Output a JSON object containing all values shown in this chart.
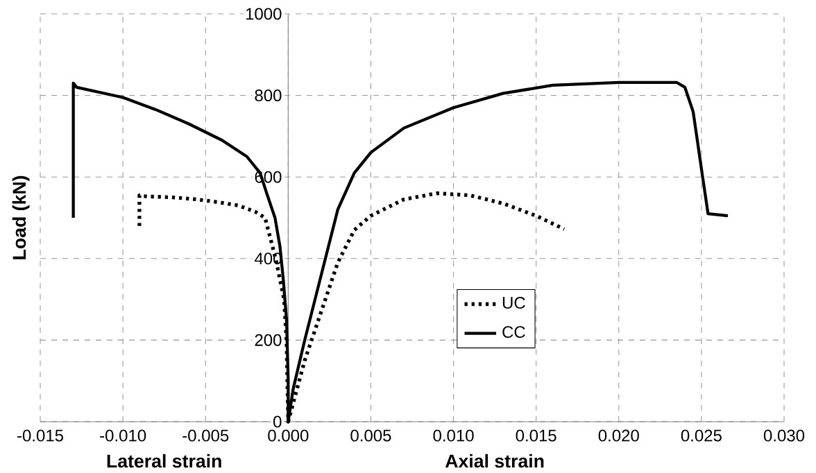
{
  "chart_data": {
    "type": "line",
    "ylabel": "Load (kN)",
    "xlabel": "Axial strain",
    "annotations": [
      "Lateral strain"
    ],
    "xlim": [
      -0.015,
      0.03
    ],
    "ylim": [
      0,
      1000
    ],
    "xticks": [
      {
        "value": -0.015,
        "label": "-0.015"
      },
      {
        "value": -0.01,
        "label": "-0.010"
      },
      {
        "value": -0.005,
        "label": "-0.005"
      },
      {
        "value": 0,
        "label": "0.000"
      },
      {
        "value": 0.005,
        "label": "0.005"
      },
      {
        "value": 0.01,
        "label": "0.010"
      },
      {
        "value": 0.015,
        "label": "0.015"
      },
      {
        "value": 0.02,
        "label": "0.020"
      },
      {
        "value": 0.025,
        "label": "0.025"
      },
      {
        "value": 0.03,
        "label": "0.030"
      }
    ],
    "yticks": [
      0,
      200,
      400,
      600,
      800,
      1000
    ],
    "grid": true,
    "legend": "bottom",
    "marker": "none",
    "series": [
      {
        "name": "UC",
        "color": "#000000",
        "line_style": "dotted",
        "x": [
          -0.009,
          -0.009,
          -0.0088,
          -0.007,
          -0.0055,
          -0.0042,
          -0.003,
          -0.002,
          -0.0014,
          -0.00076,
          -0.00025,
          -0.0001,
          0,
          0.001,
          0.002,
          0.003,
          0.004,
          0.005,
          0.007,
          0.009,
          0.011,
          0.013,
          0.015,
          0.0167
        ],
        "values": [
          480,
          555,
          553,
          550,
          545,
          538,
          530,
          515,
          500,
          400,
          300,
          200,
          0,
          150,
          270,
          390,
          470,
          505,
          545,
          560,
          555,
          535,
          505,
          472
        ]
      },
      {
        "name": "CC",
        "color": "#000000",
        "line_style": "solid",
        "x": [
          -0.013,
          -0.013,
          -0.0128,
          -0.01,
          -0.008,
          -0.006,
          -0.004,
          -0.0025,
          -0.0017,
          -0.0013,
          -0.0008,
          -0.0005,
          -0.0003,
          -0.0001,
          0,
          0,
          0.0003,
          0.001,
          0.002,
          0.003,
          0.004,
          0.005,
          0.007,
          0.01,
          0.013,
          0.016,
          0.02,
          0.0235,
          0.024,
          0.0245,
          0.025,
          0.0254,
          0.0266
        ],
        "values": [
          500,
          830,
          820,
          795,
          765,
          730,
          690,
          650,
          610,
          560,
          500,
          430,
          350,
          250,
          100,
          0,
          80,
          200,
          360,
          520,
          610,
          660,
          720,
          770,
          805,
          825,
          832,
          832,
          820,
          760,
          620,
          510,
          505
        ]
      }
    ]
  }
}
